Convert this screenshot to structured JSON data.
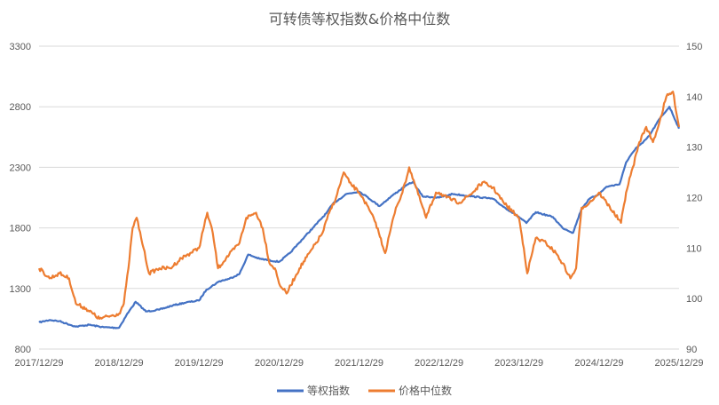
{
  "chart_data": {
    "type": "line",
    "title": "可转债等权指数&价格中位数",
    "x_ticks": [
      "2017/12/29",
      "2018/12/29",
      "2019/12/29",
      "2020/12/29",
      "2021/12/29",
      "2022/12/29",
      "2023/12/29",
      "2024/12/29",
      "2025/12/29"
    ],
    "x_range": [
      "2017/12/29",
      "2025/12/29"
    ],
    "y_left": {
      "min": 800,
      "max": 3300,
      "ticks": [
        800,
        1300,
        1800,
        2300,
        2800,
        3300
      ]
    },
    "y_right": {
      "min": 90,
      "max": 150,
      "ticks": [
        90,
        100,
        110,
        120,
        130,
        140,
        150
      ]
    },
    "grid": true,
    "legend_position": "bottom",
    "series": [
      {
        "name": "等权指数",
        "axis": "left",
        "color": "#4472C4",
        "points": [
          [
            "2017/12/29",
            1020
          ],
          [
            "2018/02/15",
            1040
          ],
          [
            "2018/04/01",
            1030
          ],
          [
            "2018/06/15",
            985
          ],
          [
            "2018/08/15",
            1000
          ],
          [
            "2018/10/20",
            980
          ],
          [
            "2018/12/29",
            975
          ],
          [
            "2019/02/01",
            1080
          ],
          [
            "2019/03/15",
            1190
          ],
          [
            "2019/05/01",
            1110
          ],
          [
            "2019/07/01",
            1125
          ],
          [
            "2019/09/01",
            1160
          ],
          [
            "2019/11/01",
            1185
          ],
          [
            "2019/12/29",
            1200
          ],
          [
            "2020/02/01",
            1290
          ],
          [
            "2020/04/01",
            1360
          ],
          [
            "2020/05/15",
            1380
          ],
          [
            "2020/07/01",
            1420
          ],
          [
            "2020/08/10",
            1580
          ],
          [
            "2020/10/01",
            1545
          ],
          [
            "2020/12/29",
            1520
          ],
          [
            "2021/02/15",
            1590
          ],
          [
            "2021/04/01",
            1680
          ],
          [
            "2021/06/01",
            1800
          ],
          [
            "2021/08/01",
            1920
          ],
          [
            "2021/09/01",
            2000
          ],
          [
            "2021/11/01",
            2080
          ],
          [
            "2021/12/29",
            2100
          ],
          [
            "2022/02/01",
            2060
          ],
          [
            "2022/04/01",
            1980
          ],
          [
            "2022/06/01",
            2070
          ],
          [
            "2022/08/01",
            2150
          ],
          [
            "2022/09/01",
            2180
          ],
          [
            "2022/10/15",
            2060
          ],
          [
            "2022/12/29",
            2050
          ],
          [
            "2023/03/01",
            2080
          ],
          [
            "2023/06/01",
            2060
          ],
          [
            "2023/09/01",
            2040
          ],
          [
            "2023/10/15",
            1980
          ],
          [
            "2023/12/29",
            1890
          ],
          [
            "2024/02/01",
            1840
          ],
          [
            "2024/03/15",
            1930
          ],
          [
            "2024/06/01",
            1890
          ],
          [
            "2024/07/15",
            1800
          ],
          [
            "2024/09/01",
            1760
          ],
          [
            "2024/10/10",
            1960
          ],
          [
            "2024/11/15",
            2040
          ],
          [
            "2024/12/29",
            2080
          ],
          [
            "2025/02/01",
            2140
          ],
          [
            "2025/04/01",
            2160
          ],
          [
            "2025/05/01",
            2340
          ],
          [
            "2025/06/15",
            2460
          ],
          [
            "2025/07/15",
            2500
          ],
          [
            "2025/08/15",
            2560
          ],
          [
            "2025/10/01",
            2700
          ],
          [
            "2025/11/15",
            2800
          ],
          [
            "2025/12/29",
            2620
          ]
        ]
      },
      {
        "name": "价格中位数",
        "axis": "right",
        "color": "#ED7D31",
        "points": [
          [
            "2017/12/29",
            106
          ],
          [
            "2018/02/15",
            104
          ],
          [
            "2018/04/01",
            105
          ],
          [
            "2018/05/15",
            104
          ],
          [
            "2018/06/15",
            99
          ],
          [
            "2018/08/01",
            98
          ],
          [
            "2018/10/01",
            96
          ],
          [
            "2018/12/29",
            97
          ],
          [
            "2019/01/20",
            99
          ],
          [
            "2019/02/10",
            106
          ],
          [
            "2019/03/01",
            114
          ],
          [
            "2019/03/20",
            116
          ],
          [
            "2019/04/20",
            110
          ],
          [
            "2019/05/15",
            105
          ],
          [
            "2019/07/01",
            106
          ],
          [
            "2019/08/20",
            106
          ],
          [
            "2019/10/10",
            108
          ],
          [
            "2019/12/29",
            110
          ],
          [
            "2020/02/05",
            117
          ],
          [
            "2020/03/01",
            113
          ],
          [
            "2020/03/25",
            106
          ],
          [
            "2020/05/01",
            108
          ],
          [
            "2020/07/01",
            111
          ],
          [
            "2020/08/01",
            116
          ],
          [
            "2020/09/15",
            117
          ],
          [
            "2020/10/15",
            114
          ],
          [
            "2020/11/15",
            107
          ],
          [
            "2020/12/10",
            106
          ],
          [
            "2020/12/29",
            103
          ],
          [
            "2021/02/01",
            101
          ],
          [
            "2021/04/01",
            106
          ],
          [
            "2021/06/01",
            110
          ],
          [
            "2021/07/15",
            113
          ],
          [
            "2021/08/15",
            117
          ],
          [
            "2021/09/15",
            120
          ],
          [
            "2021/10/20",
            125
          ],
          [
            "2021/11/15",
            123
          ],
          [
            "2021/12/29",
            121
          ],
          [
            "2022/01/15",
            120
          ],
          [
            "2022/03/15",
            115
          ],
          [
            "2022/04/27",
            109
          ],
          [
            "2022/06/15",
            118
          ],
          [
            "2022/07/15",
            121
          ],
          [
            "2022/08/15",
            126
          ],
          [
            "2022/09/15",
            122
          ],
          [
            "2022/10/31",
            116
          ],
          [
            "2022/12/15",
            121
          ],
          [
            "2022/12/29",
            121
          ],
          [
            "2023/02/01",
            120
          ],
          [
            "2023/04/01",
            119
          ],
          [
            "2023/06/01",
            121
          ],
          [
            "2023/07/15",
            123
          ],
          [
            "2023/09/01",
            122
          ],
          [
            "2023/10/20",
            119
          ],
          [
            "2023/12/29",
            116
          ],
          [
            "2024/01/20",
            110
          ],
          [
            "2024/02/05",
            105
          ],
          [
            "2024/03/15",
            112
          ],
          [
            "2024/05/01",
            111
          ],
          [
            "2024/06/15",
            109
          ],
          [
            "2024/07/15",
            107
          ],
          [
            "2024/08/20",
            104
          ],
          [
            "2024/09/15",
            106
          ],
          [
            "2024/10/10",
            118
          ],
          [
            "2024/11/15",
            119
          ],
          [
            "2024/12/29",
            121
          ],
          [
            "2025/02/01",
            119
          ],
          [
            "2025/04/08",
            115
          ],
          [
            "2025/05/01",
            121
          ],
          [
            "2025/06/01",
            126
          ],
          [
            "2025/07/01",
            131
          ],
          [
            "2025/08/01",
            134
          ],
          [
            "2025/09/01",
            131
          ],
          [
            "2025/10/01",
            135
          ],
          [
            "2025/11/01",
            140
          ],
          [
            "2025/12/01",
            141
          ],
          [
            "2025/12/29",
            134
          ]
        ]
      }
    ]
  }
}
